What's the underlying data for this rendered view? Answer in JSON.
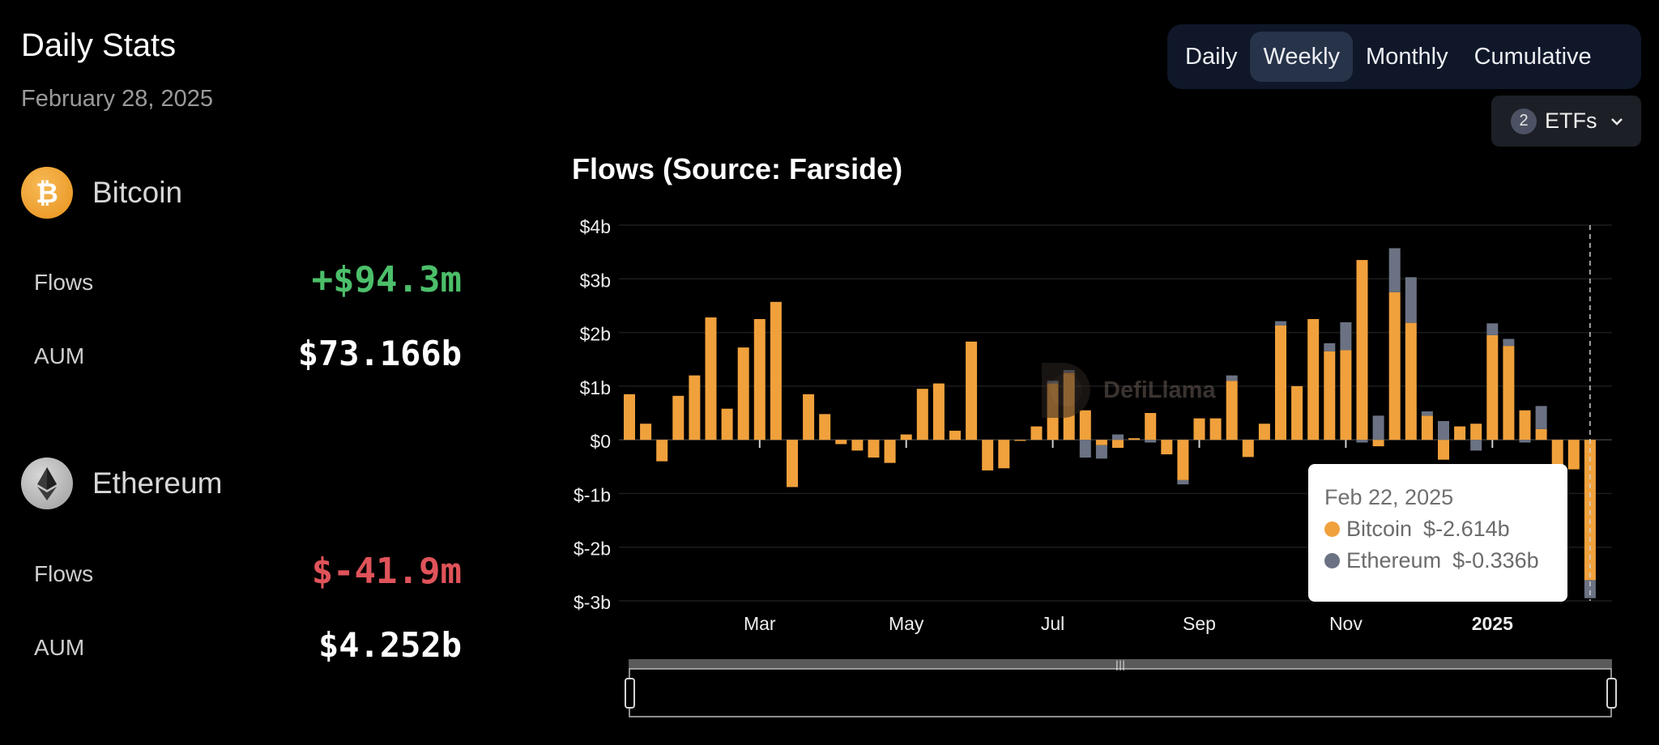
{
  "header": {
    "title": "Daily Stats",
    "date": "February 28, 2025"
  },
  "assets": {
    "bitcoin": {
      "name": "Bitcoin",
      "flows_label": "Flows",
      "flows_value": "+$94.3m",
      "aum_label": "AUM",
      "aum_value": "$73.166b"
    },
    "ethereum": {
      "name": "Ethereum",
      "flows_label": "Flows",
      "flows_value": "$-41.9m",
      "aum_label": "AUM",
      "aum_value": "$4.252b"
    }
  },
  "tabs": [
    "Daily",
    "Weekly",
    "Monthly",
    "Cumulative"
  ],
  "active_tab": "Weekly",
  "etf_selector": {
    "count": "2",
    "label": "ETFs"
  },
  "colors": {
    "bitcoin": "#f0a13c",
    "ethereum": "#6b7283",
    "positive": "#4cbf6a",
    "negative": "#e0535a"
  },
  "watermark": "DefiLlama",
  "tooltip": {
    "date": "Feb 22, 2025",
    "rows": [
      {
        "name": "Bitcoin",
        "value": "$-2.614b"
      },
      {
        "name": "Ethereum",
        "value": "$-0.336b"
      }
    ]
  },
  "chart_data": {
    "type": "bar",
    "stacked": true,
    "title": "Flows (Source: Farside)",
    "y_ticks": [
      "$4b",
      "$3b",
      "$2b",
      "$1b",
      "$0",
      "$-1b",
      "$-2b",
      "$-3b"
    ],
    "ylim": [
      -3,
      4
    ],
    "x_ticks": [
      {
        "label": "Mar",
        "week": 8
      },
      {
        "label": "May",
        "week": 17
      },
      {
        "label": "Jul",
        "week": 26
      },
      {
        "label": "Sep",
        "week": 35
      },
      {
        "label": "Nov",
        "week": 44
      },
      {
        "label": "2025",
        "week": 53
      }
    ],
    "series": [
      {
        "name": "Bitcoin",
        "values": [
          0.85,
          0.3,
          -0.4,
          0.82,
          1.2,
          2.28,
          0.58,
          1.72,
          2.25,
          2.57,
          -0.88,
          0.85,
          0.48,
          -0.08,
          -0.2,
          -0.33,
          -0.43,
          0.1,
          0.95,
          1.05,
          0.17,
          1.83,
          -0.57,
          -0.53,
          -0.02,
          0.25,
          1.05,
          1.25,
          0.55,
          -0.1,
          -0.15,
          0.03,
          0.5,
          -0.27,
          -0.75,
          0.4,
          0.4,
          1.1,
          -0.32,
          0.3,
          2.13,
          1.0,
          2.25,
          1.65,
          1.67,
          3.35,
          -0.12,
          2.75,
          2.18,
          0.45,
          -0.37,
          0.25,
          0.3,
          1.95,
          1.75,
          0.55,
          0.2,
          -0.58,
          -0.55,
          -2.614
        ]
      },
      {
        "name": "Ethereum",
        "values": [
          0,
          0,
          0,
          0,
          0,
          0,
          0,
          0,
          0,
          0,
          0,
          0,
          0,
          0,
          0,
          0,
          0,
          0,
          0,
          0,
          0,
          0,
          0,
          0,
          0,
          0,
          0.05,
          0.05,
          -0.33,
          -0.25,
          0.1,
          0,
          -0.05,
          0,
          -0.08,
          0,
          0,
          0.1,
          0,
          0,
          0.08,
          0,
          0,
          0.15,
          0.52,
          -0.05,
          0.45,
          0.82,
          0.85,
          0.08,
          0.35,
          0,
          -0.2,
          0.22,
          0.13,
          -0.05,
          0.43,
          0,
          0,
          -0.336
        ]
      }
    ]
  }
}
